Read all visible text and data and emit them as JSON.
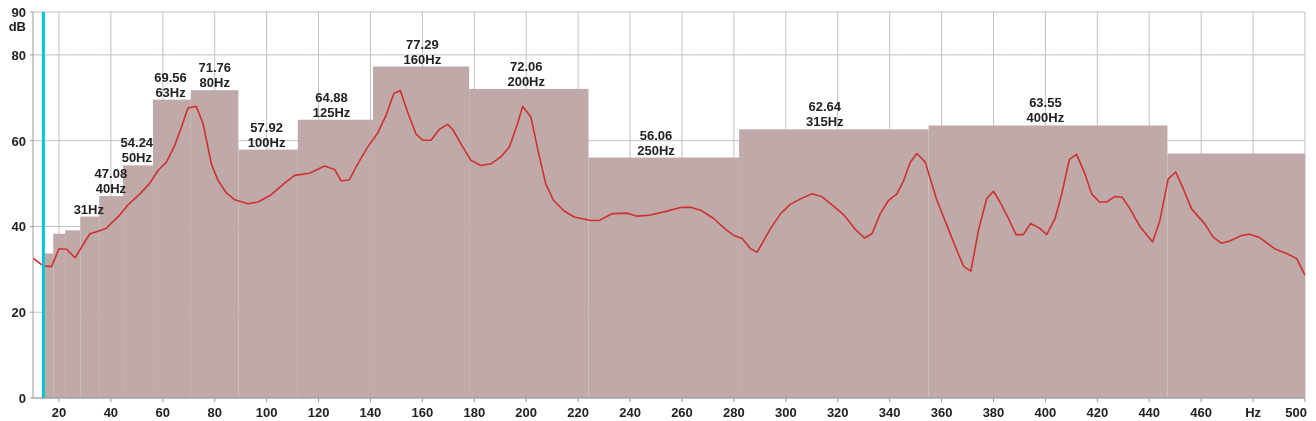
{
  "chart_data": {
    "type": "histogram",
    "ylabel": "dB",
    "bins": [
      14.1,
      17.8,
      22.4,
      28.2,
      35.5,
      44.7,
      56.2,
      70.8,
      89.1,
      112,
      141,
      178,
      224,
      282,
      355,
      447,
      500
    ],
    "values": [
      33.7,
      38.3,
      39.1,
      42.3,
      47.08,
      54.24,
      69.56,
      71.76,
      57.92,
      64.88,
      77.29,
      72.06,
      56.06,
      62.64,
      63.55,
      57.0
    ],
    "value_labels": [
      null,
      null,
      null,
      null,
      "47.08",
      "54.24",
      "69.56",
      "71.76",
      "57.92",
      "64.88",
      "77.29",
      "72.06",
      "56.06",
      "62.64",
      "63.55",
      null
    ],
    "color": "#bfa9a9",
    "series": [
      {
        "type": "line",
        "color": "#d0312d",
        "x": [
          10,
          13.3,
          15.2,
          17.2,
          20,
          22.9,
          26.2,
          31.9,
          35.1,
          38.3,
          40.9,
          43.5,
          46.7,
          51.2,
          55,
          58.2,
          61.4,
          64.6,
          67.2,
          69.7,
          72.9,
          75.5,
          78.7,
          81.3,
          84.5,
          87.7,
          92.8,
          96.7,
          101.8,
          106.9,
          110.8,
          116.5,
          122.3,
          126.2,
          128.7,
          131.9,
          135.1,
          138.9,
          142.8,
          146,
          149,
          151.5,
          154.3,
          157.5,
          160.1,
          163.3,
          166.5,
          169.7,
          171.7,
          174.8,
          178.7,
          182.5,
          186.4,
          190.2,
          193.5,
          196.7,
          198.6,
          201.8,
          204.4,
          207.5,
          210.5,
          214.6,
          218.5,
          224.8,
          228.1,
          233.2,
          239,
          242.8,
          247.3,
          253.1,
          259.5,
          263.3,
          267.2,
          272.3,
          276.8,
          280,
          283.2,
          286.4,
          289,
          294.1,
          298,
          301.8,
          306.3,
          310.1,
          314,
          318.5,
          322.3,
          326.8,
          330.3,
          333.2,
          336.4,
          339.6,
          342.8,
          345.4,
          347.9,
          350.5,
          353.7,
          358.2,
          362,
          365.9,
          368.5,
          371.3,
          374.2,
          377.4,
          380,
          382.5,
          385.8,
          388.7,
          391.5,
          394.3,
          397.7,
          400.5,
          403.7,
          406.3,
          409.2,
          412,
          415.2,
          417.8,
          420.8,
          423.6,
          426.8,
          429.6,
          432.6,
          436.4,
          441.3,
          444.1,
          447.3,
          450.2,
          453.1,
          456.3,
          461.4,
          464.6,
          467.8,
          471,
          475.5,
          478.7,
          482.5,
          488.3,
          492.9,
          496.8,
          500
        ],
        "values": [
          32.6,
          31.1,
          30.7,
          30.7,
          34.8,
          34.7,
          32.7,
          38.3,
          38.9,
          39.6,
          41.2,
          42.7,
          45.1,
          47.6,
          50.1,
          53.1,
          55.0,
          58.9,
          63.2,
          67.6,
          68.0,
          64.0,
          54.6,
          50.7,
          47.8,
          46.2,
          45.3,
          45.7,
          47.4,
          50.1,
          51.9,
          52.4,
          54.1,
          53.3,
          50.6,
          50.9,
          54.6,
          58.5,
          61.8,
          65.9,
          71.0,
          71.7,
          66.7,
          61.6,
          60.1,
          60.1,
          62.6,
          63.8,
          62.6,
          59.3,
          55.4,
          54.2,
          54.6,
          56.2,
          58.5,
          64.0,
          68.0,
          65.5,
          58.1,
          50.0,
          46.1,
          43.6,
          42.2,
          41.4,
          41.4,
          43.0,
          43.1,
          42.4,
          42.6,
          43.4,
          44.4,
          44.5,
          43.8,
          41.8,
          39.3,
          37.9,
          37.2,
          34.8,
          34.0,
          39.5,
          43.0,
          45.2,
          46.6,
          47.6,
          46.9,
          44.7,
          42.7,
          39.3,
          37.3,
          38.3,
          43.0,
          46.1,
          47.6,
          50.7,
          54.9,
          57.0,
          55.0,
          46.1,
          40.3,
          34.4,
          30.7,
          29.6,
          39.1,
          46.5,
          48.2,
          45.7,
          41.8,
          38.1,
          38.1,
          40.7,
          39.6,
          38.1,
          41.8,
          47.6,
          55.6,
          56.8,
          52.3,
          47.6,
          45.7,
          45.7,
          47.0,
          46.8,
          44.1,
          40.0,
          36.4,
          41.4,
          51.1,
          52.7,
          48.8,
          44.1,
          40.6,
          37.5,
          36.1,
          36.6,
          37.9,
          38.2,
          37.4,
          34.8,
          33.7,
          32.5,
          28.6
        ]
      }
    ],
    "annotations": [
      {
        "text": "31Hz",
        "x": 31.5,
        "y": 42.3
      },
      {
        "text": "40Hz",
        "x": 40,
        "y": 47.08
      },
      {
        "text": "50Hz",
        "x": 50,
        "y": 54.24
      },
      {
        "text": "63Hz",
        "x": 63,
        "y": 69.56
      },
      {
        "text": "80Hz",
        "x": 80,
        "y": 71.76
      },
      {
        "text": "100Hz",
        "x": 100,
        "y": 57.92
      },
      {
        "text": "125Hz",
        "x": 125,
        "y": 64.88
      },
      {
        "text": "160Hz",
        "x": 160,
        "y": 77.29
      },
      {
        "text": "200Hz",
        "x": 200,
        "y": 72.06
      },
      {
        "text": "250Hz",
        "x": 250,
        "y": 56.06
      },
      {
        "text": "315Hz",
        "x": 315,
        "y": 62.64
      },
      {
        "text": "400Hz",
        "x": 400,
        "y": 63.55
      }
    ],
    "ref_lines": [
      {
        "axis": "x",
        "value": 14,
        "color": "#00c8d8"
      }
    ],
    "xlim": [
      10,
      500
    ],
    "xticks": [
      20,
      40,
      60,
      80,
      100,
      120,
      140,
      160,
      180,
      200,
      220,
      240,
      260,
      280,
      300,
      320,
      340,
      360,
      380,
      400,
      420,
      440,
      460,
      {
        "value": 480,
        "label": "Hz"
      },
      500
    ],
    "ylim": [
      0,
      90
    ],
    "yticks": [
      0,
      20,
      40,
      60,
      80,
      90
    ],
    "grid": true
  }
}
